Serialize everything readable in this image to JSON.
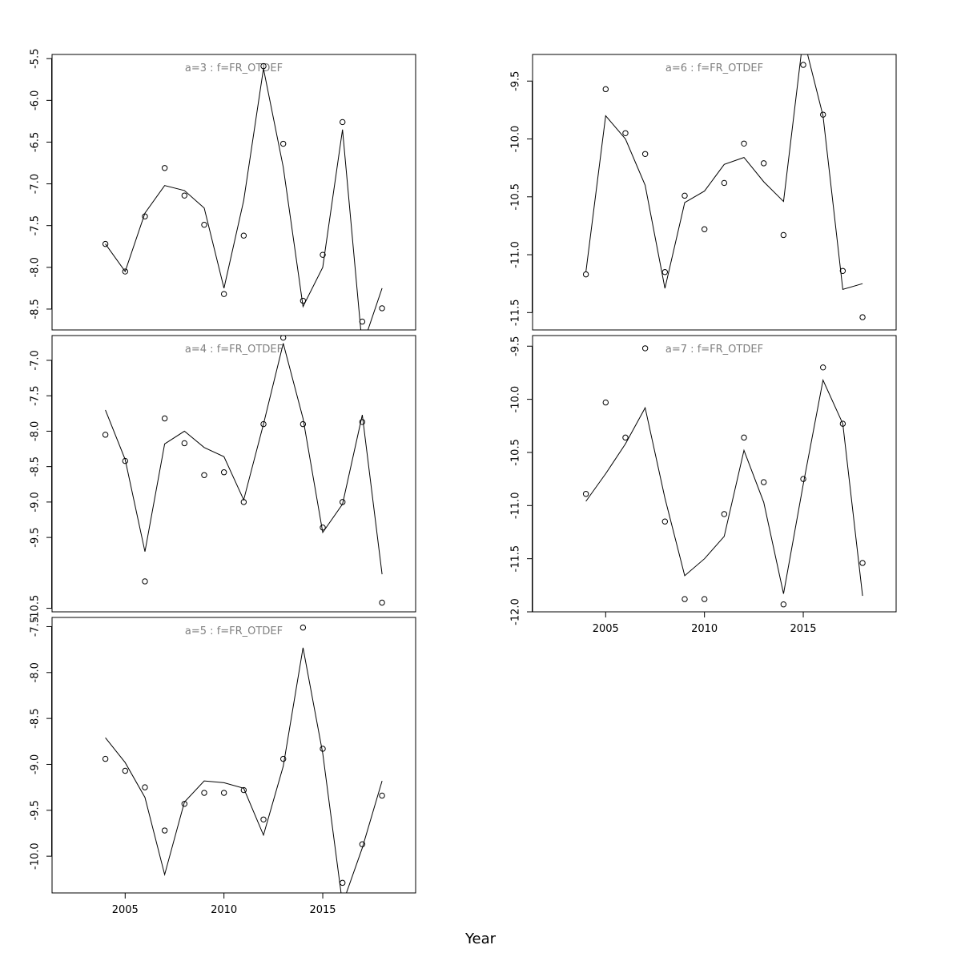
{
  "chart_data": {
    "type": "line",
    "xlabel": "Year",
    "x": [
      2004,
      2005,
      2006,
      2007,
      2008,
      2009,
      2010,
      2011,
      2012,
      2013,
      2014,
      2015,
      2016,
      2017,
      2018
    ],
    "xlim": [
      2001.3,
      2019.7
    ],
    "xticks": [
      2005,
      2010,
      2015
    ],
    "line_color": "#000000",
    "title_color": "#808080",
    "grid": false,
    "panels": [
      {
        "title": "a=3  :  f=FR_OTDEF",
        "ylim": [
          -8.75,
          -5.45
        ],
        "yticks": [
          "-5.5",
          "-6.0",
          "-6.5",
          "-7.0",
          "-7.5",
          "-8.0",
          "-8.5"
        ],
        "points": [
          -7.72,
          -8.05,
          -7.39,
          -6.81,
          -7.14,
          -7.49,
          -8.32,
          -7.62,
          -5.59,
          -6.52,
          -8.4,
          -7.85,
          -6.26,
          -8.65,
          -8.49
        ],
        "fit": [
          -7.72,
          -8.05,
          -7.35,
          -7.02,
          -7.08,
          -7.29,
          -8.25,
          -7.2,
          -5.62,
          -6.8,
          -8.47,
          -8.0,
          -6.35,
          -8.95,
          -8.25
        ],
        "show_xaxis": false
      },
      {
        "title": "a=4  :  f=FR_OTDEF",
        "ylim": [
          -10.55,
          -6.65
        ],
        "yticks": [
          "-7.0",
          "-7.5",
          "-8.0",
          "-8.5",
          "-9.0",
          "-9.5",
          "-10.5"
        ],
        "points": [
          -8.05,
          -8.42,
          -10.12,
          -7.82,
          -8.17,
          -8.62,
          -8.58,
          -9.0,
          -7.9,
          -6.68,
          -7.9,
          -9.36,
          -9.0,
          -7.87,
          -10.42
        ],
        "fit": [
          -7.7,
          -8.4,
          -9.7,
          -8.18,
          -8.0,
          -8.23,
          -8.36,
          -8.97,
          -7.9,
          -6.76,
          -7.82,
          -9.43,
          -9.03,
          -7.77,
          -10.02
        ],
        "show_xaxis": false
      },
      {
        "title": "a=5  :  f=FR_OTDEF",
        "ylim": [
          -10.4,
          -7.4
        ],
        "yticks": [
          "-7.5",
          "-8.0",
          "-8.5",
          "-9.0",
          "-9.5",
          "-10.0"
        ],
        "points": [
          -8.94,
          -9.07,
          -9.25,
          -9.72,
          -9.43,
          -9.31,
          -9.31,
          -9.28,
          -9.6,
          -8.94,
          -7.51,
          -8.83,
          -10.29,
          -9.87,
          -9.34
        ],
        "fit": [
          -8.71,
          -8.98,
          -9.36,
          -10.2,
          -9.41,
          -9.18,
          -9.2,
          -9.26,
          -9.77,
          -9.02,
          -7.73,
          -8.88,
          -10.52,
          -9.91,
          -9.18
        ],
        "show_xaxis": true
      },
      {
        "title": "a=6  :  f=FR_OTDEF",
        "ylim": [
          -11.65,
          -9.27
        ],
        "yticks": [
          "-9.5",
          "-10.0",
          "-10.5",
          "-11.0",
          "-11.5"
        ],
        "points": [
          -11.17,
          -9.57,
          -9.95,
          -10.13,
          -11.15,
          -10.49,
          -10.78,
          -10.38,
          -10.04,
          -10.21,
          -10.83,
          -9.36,
          -9.79,
          -11.14,
          -11.54
        ],
        "fit": [
          -11.15,
          -9.8,
          -10.0,
          -10.4,
          -11.29,
          -10.55,
          -10.45,
          -10.22,
          -10.16,
          -10.37,
          -10.54,
          -9.12,
          -9.8,
          -11.3,
          -11.25
        ],
        "show_xaxis": false
      },
      {
        "title": "a=7  :  f=FR_OTDEF",
        "ylim": [
          -12.0,
          -9.4
        ],
        "yticks": [
          "-9.5",
          "-10.0",
          "-10.5",
          "-11.0",
          "-11.5",
          "-12.0"
        ],
        "points": [
          -10.89,
          -10.03,
          -10.36,
          -9.52,
          -11.15,
          -11.88,
          -11.88,
          -11.08,
          -10.36,
          -10.78,
          -11.93,
          -10.75,
          -9.7,
          -10.23,
          -11.54
        ],
        "fit": [
          -10.96,
          -10.7,
          -10.42,
          -10.08,
          -10.93,
          -11.66,
          -11.5,
          -11.29,
          -10.48,
          -10.97,
          -11.83,
          -10.8,
          -9.82,
          -10.23,
          -11.85
        ],
        "show_xaxis": true
      }
    ]
  }
}
